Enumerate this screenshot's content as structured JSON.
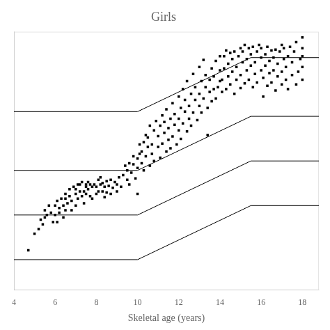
{
  "chart_data": {
    "type": "scatter",
    "title": "Girls",
    "xlabel": "Skeletal age (years)",
    "xlim": [
      4,
      18.8
    ],
    "ylim": [
      150,
      700
    ],
    "xticks": [
      4,
      6,
      8,
      10,
      12,
      14,
      16,
      18
    ],
    "tick_labels": "x",
    "grid": false,
    "series": [
      {
        "type": "scatter",
        "marker": "square",
        "color": "#000000",
        "x": [
          4.7,
          5.0,
          5.2,
          5.3,
          5.4,
          5.5,
          5.5,
          5.6,
          5.7,
          5.8,
          5.9,
          6.0,
          6.0,
          6.1,
          6.1,
          6.2,
          6.2,
          6.3,
          6.4,
          6.4,
          6.5,
          6.5,
          6.5,
          6.6,
          6.7,
          6.7,
          6.8,
          6.8,
          6.9,
          7.0,
          7.0,
          7.0,
          7.1,
          7.1,
          7.2,
          7.2,
          7.3,
          7.3,
          7.4,
          7.4,
          7.5,
          7.5,
          7.5,
          7.6,
          7.6,
          7.7,
          7.7,
          7.8,
          7.8,
          7.9,
          8.0,
          8.0,
          8.1,
          8.1,
          8.2,
          8.2,
          8.3,
          8.3,
          8.4,
          8.4,
          8.5,
          8.5,
          8.6,
          8.7,
          8.7,
          8.8,
          8.9,
          9.0,
          9.0,
          9.1,
          9.2,
          9.3,
          9.4,
          9.5,
          9.5,
          9.6,
          9.6,
          9.7,
          9.8,
          9.8,
          9.9,
          10.0,
          10.0,
          10.0,
          10.1,
          10.1,
          10.2,
          10.2,
          10.3,
          10.3,
          10.4,
          10.4,
          10.5,
          10.5,
          10.6,
          10.6,
          10.7,
          10.7,
          10.8,
          10.8,
          10.9,
          11.0,
          11.0,
          11.1,
          11.1,
          11.2,
          11.2,
          11.3,
          11.3,
          11.4,
          11.4,
          11.5,
          11.5,
          11.6,
          11.6,
          11.7,
          11.7,
          11.8,
          11.8,
          11.9,
          12.0,
          12.0,
          12.0,
          12.1,
          12.1,
          12.2,
          12.2,
          12.3,
          12.3,
          12.4,
          12.4,
          12.5,
          12.5,
          12.6,
          12.6,
          12.7,
          12.7,
          12.8,
          12.8,
          12.9,
          13.0,
          13.0,
          13.0,
          13.1,
          13.1,
          13.2,
          13.2,
          13.3,
          13.3,
          13.4,
          13.4,
          13.5,
          13.5,
          13.6,
          13.6,
          13.7,
          13.7,
          13.8,
          13.8,
          13.9,
          14.0,
          14.0,
          14.0,
          14.1,
          14.1,
          14.2,
          14.2,
          14.3,
          14.3,
          14.4,
          14.4,
          14.5,
          14.5,
          14.6,
          14.6,
          14.7,
          14.7,
          14.8,
          14.8,
          14.9,
          15.0,
          15.0,
          15.0,
          15.1,
          15.1,
          15.2,
          15.2,
          15.3,
          15.3,
          15.4,
          15.4,
          15.5,
          15.5,
          15.6,
          15.6,
          15.7,
          15.7,
          15.8,
          15.8,
          15.9,
          16.0,
          16.0,
          16.0,
          16.1,
          16.1,
          16.2,
          16.2,
          16.3,
          16.3,
          16.4,
          16.4,
          16.5,
          16.5,
          16.6,
          16.6,
          16.7,
          16.7,
          16.8,
          16.8,
          16.9,
          17.0,
          17.0,
          17.0,
          17.1,
          17.1,
          17.2,
          17.2,
          17.3,
          17.3,
          17.4,
          17.5,
          17.5,
          17.6,
          17.7,
          17.7,
          17.8,
          17.9,
          18.0,
          18.0,
          18.0,
          18.0,
          18.0
        ],
        "values": [
          235,
          270,
          280,
          300,
          290,
          305,
          320,
          310,
          330,
          315,
          295,
          310,
          330,
          340,
          295,
          315,
          325,
          345,
          330,
          305,
          320,
          345,
          355,
          335,
          350,
          365,
          320,
          340,
          370,
          330,
          355,
          365,
          375,
          345,
          360,
          375,
          350,
          380,
          335,
          360,
          370,
          355,
          375,
          365,
          380,
          350,
          375,
          345,
          370,
          375,
          355,
          370,
          385,
          360,
          375,
          390,
          360,
          378,
          348,
          370,
          382,
          358,
          372,
          385,
          355,
          368,
          380,
          360,
          375,
          390,
          370,
          395,
          415,
          385,
          405,
          420,
          375,
          400,
          418,
          435,
          388,
          410,
          430,
          355,
          440,
          460,
          420,
          445,
          465,
          405,
          480,
          435,
          455,
          475,
          415,
          500,
          440,
          460,
          490,
          425,
          510,
          455,
          478,
          500,
          432,
          522,
          462,
          485,
          508,
          445,
          535,
          470,
          495,
          515,
          452,
          548,
          477,
          502,
          525,
          460,
          562,
          490,
          515,
          538,
          472,
          578,
          505,
          530,
          555,
          488,
          595,
          515,
          542,
          568,
          500,
          610,
          528,
          555,
          582,
          512,
          625,
          542,
          568,
          595,
          528,
          640,
          558,
          582,
          608,
          538,
          480,
          572,
          598,
          622,
          552,
          578,
          605,
          638,
          558,
          582,
          618,
          595,
          648,
          572,
          598,
          622,
          648,
          578,
          660,
          605,
          632,
          655,
          588,
          615,
          642,
          568,
          658,
          598,
          625,
          648,
          580,
          665,
          608,
          635,
          658,
          590,
          672,
          618,
          642,
          665,
          598,
          628,
          652,
          582,
          668,
          610,
          635,
          658,
          592,
          672,
          618,
          645,
          665,
          602,
          562,
          628,
          652,
          585,
          668,
          612,
          638,
          660,
          592,
          618,
          645,
          575,
          662,
          605,
          632,
          658,
          588,
          672,
          615,
          642,
          665,
          598,
          625,
          648,
          578,
          668,
          608,
          635,
          658,
          588,
          678,
          615,
          642,
          665,
          598,
          625,
          688,
          648
        ]
      },
      {
        "type": "line",
        "line_style": "solid",
        "color": "#000000",
        "x": [
          4,
          10.0,
          15.5,
          18.8
        ],
        "values": [
          530,
          530,
          645,
          645
        ]
      },
      {
        "type": "line",
        "line_style": "solid",
        "color": "#000000",
        "x": [
          4,
          10.0,
          15.5,
          18.8
        ],
        "values": [
          405,
          405,
          520,
          520
        ]
      },
      {
        "type": "line",
        "line_style": "solid",
        "color": "#000000",
        "x": [
          4,
          10.0,
          15.5,
          18.8
        ],
        "values": [
          310,
          310,
          425,
          425
        ]
      },
      {
        "type": "line",
        "line_style": "solid",
        "color": "#000000",
        "x": [
          4,
          10.0,
          15.5,
          18.8
        ],
        "values": [
          215,
          215,
          330,
          330
        ]
      }
    ]
  }
}
